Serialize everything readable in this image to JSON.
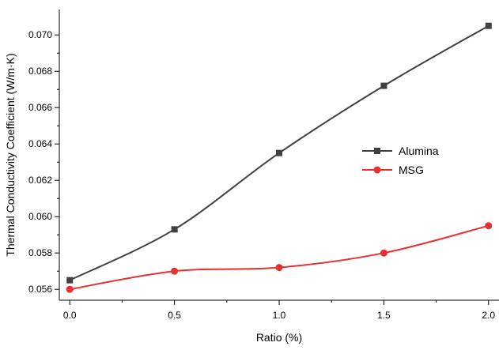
{
  "chart_data": {
    "type": "line",
    "title": "",
    "xlabel": "Ratio (%)",
    "ylabel": "Thermal Conductivity Coefficient (W/m·K)",
    "x": [
      0.0,
      0.5,
      1.0,
      1.5,
      2.0
    ],
    "x_tick_labels": [
      "0.0",
      "0.5",
      "1.0",
      "1.5",
      "2.0"
    ],
    "y_tick_labels": [
      "0.056",
      "0.058",
      "0.060",
      "0.062",
      "0.064",
      "0.066",
      "0.068",
      "0.070"
    ],
    "xlim": [
      -0.05,
      2.05
    ],
    "ylim": [
      0.0554,
      0.0714
    ],
    "grid": false,
    "legend_position": "right-middle",
    "series": [
      {
        "name": "Alumina",
        "marker": "square",
        "color": "#404040",
        "values": [
          0.0565,
          0.0593,
          0.0635,
          0.0672,
          0.0705
        ]
      },
      {
        "name": "MSG",
        "marker": "circle",
        "color": "#e8302f",
        "values": [
          0.056,
          0.057,
          0.0572,
          0.058,
          0.0595
        ]
      }
    ]
  }
}
